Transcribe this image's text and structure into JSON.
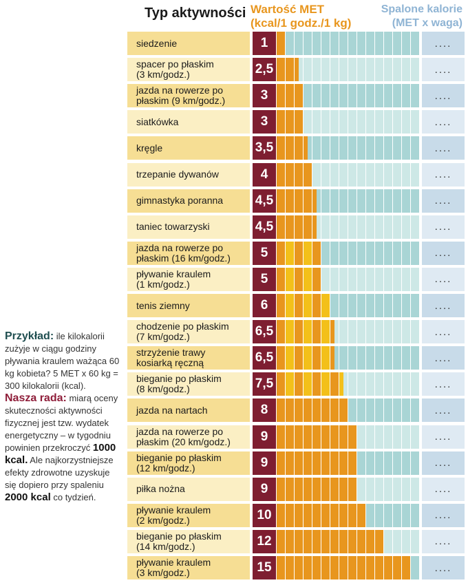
{
  "headers": {
    "activity": "Typ aktywności",
    "met_line1": "Wartość MET",
    "met_line2": "(kcal/1 godz./1 kg)",
    "kcal_line1": "Spalone kalorie",
    "kcal_line2": "(MET x waga)"
  },
  "sidebar": {
    "example_label": "Przykład:",
    "example_text": " ile kilokalorii zużyje w ciągu godziny pływania kraulem ważąca 60 kg kobieta? 5 MET x 60 kg = 300 kilokalorii (kcal).",
    "advice_label": "Nasza rada:",
    "advice_text_1": " miarą oceny skuteczności aktywności fizycznej jest tzw. wydatek energetyczny – w tygodniu powinien przekroczyć ",
    "advice_amount_1": "1000 kcal.",
    "advice_text_2": " Ale najkorzystniejsze efekty zdrowotne uzyskuje się dopiero przy spaleniu ",
    "advice_amount_2": "2000 kcal",
    "advice_text_3": " co tydzień."
  },
  "colors": {
    "met_box": "#7e1e31",
    "filled_orange": "#e8961e",
    "filled_yellow": "#f3c01a",
    "empty_teal": "#a9d5d5",
    "empty_teal_light": "#cde8e6"
  },
  "chart_data": {
    "type": "bar",
    "title": "Wartość MET",
    "xlabel": "Typ aktywności",
    "ylabel": "kcal/1 godz./1 kg",
    "ylim": [
      0,
      15
    ],
    "categories": [
      "siedzenie",
      "spacer po płaskim\n(3 km/godz.)",
      "jazda na rowerze po\npłaskim (9 km/godz.)",
      "siatkówka",
      "kręgle",
      "trzepanie dywanów",
      "gimnastyka poranna",
      "taniec towarzyski",
      "jazda na rowerze po\npłaskim (16 km/godz.)",
      "pływanie kraulem\n(1 km/godz.)",
      "tenis ziemny",
      "chodzenie po płaskim\n(7 km/godz.)",
      "strzyżenie trawy\nkosiarką ręczną",
      "bieganie po płaskim\n(8 km/godz.)",
      "jazda na nartach",
      "jazda na rowerze po\npłaskim (20 km/godz.)",
      "bieganie po płaskim\n(12 km/godz.)",
      "piłka nożna",
      "pływanie kraulem\n(2 km/godz.)",
      "bieganie po płaskim\n(14 km/godz.)",
      "pływanie kraulem\n(3 km/godz.)"
    ],
    "values": [
      1,
      2.5,
      3,
      3,
      3.5,
      4,
      4.5,
      4.5,
      5,
      5,
      6,
      6.5,
      6.5,
      7.5,
      8,
      9,
      9,
      9,
      10,
      12,
      15
    ],
    "value_labels": [
      "1",
      "2,5",
      "3",
      "3",
      "3,5",
      "4",
      "4,5",
      "4,5",
      "5",
      "5",
      "6",
      "6,5",
      "6,5",
      "7,5",
      "8",
      "9",
      "9",
      "9",
      "10",
      "12",
      "15"
    ],
    "kcal_placeholder": "...."
  }
}
